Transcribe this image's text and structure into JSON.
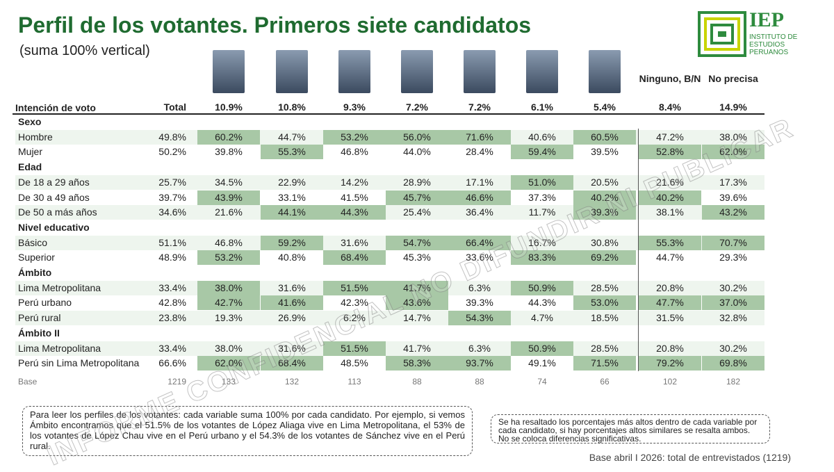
{
  "header": {
    "title": "Perfil de los votantes. Primeros siete candidatos",
    "subtitle": "(suma 100% vertical)",
    "logo": {
      "name": "IEP",
      "lines": [
        "INSTITUTO DE",
        "ESTUDIOS",
        "PERUANOS"
      ]
    }
  },
  "table": {
    "row_label": "Intención de voto",
    "total": "Total",
    "columns": [
      {
        "share": "10.9%"
      },
      {
        "share": "10.8%"
      },
      {
        "share": "9.3%"
      },
      {
        "share": "7.2%"
      },
      {
        "share": "7.2%"
      },
      {
        "share": "6.1%"
      },
      {
        "share": "5.4%"
      },
      {
        "name": "Ninguno, B/N",
        "share": "8.4%"
      },
      {
        "name": "No precisa",
        "share": "14.9%"
      }
    ],
    "sections": [
      {
        "title": "Sexo",
        "rows": [
          {
            "label": "Hombre",
            "total": "49.8%",
            "values": [
              "60.2%",
              "44.7%",
              "53.2%",
              "56.0%",
              "71.6%",
              "40.6%",
              "60.5%",
              "47.2%",
              "38.0%"
            ],
            "highlight": [
              true,
              false,
              true,
              true,
              true,
              false,
              true,
              false,
              false
            ]
          },
          {
            "label": "Mujer",
            "total": "50.2%",
            "values": [
              "39.8%",
              "55.3%",
              "46.8%",
              "44.0%",
              "28.4%",
              "59.4%",
              "39.5%",
              "52.8%",
              "62.0%"
            ],
            "highlight": [
              false,
              true,
              false,
              false,
              false,
              true,
              false,
              true,
              true
            ]
          }
        ]
      },
      {
        "title": "Edad",
        "rows": [
          {
            "label": "De 18 a 29 años",
            "total": "25.7%",
            "values": [
              "34.5%",
              "22.9%",
              "14.2%",
              "28.9%",
              "17.1%",
              "51.0%",
              "20.5%",
              "21.6%",
              "17.3%"
            ],
            "highlight": [
              false,
              false,
              false,
              false,
              false,
              true,
              false,
              false,
              false
            ]
          },
          {
            "label": "De 30 a 49 años",
            "total": "39.7%",
            "values": [
              "43.9%",
              "33.1%",
              "41.5%",
              "45.7%",
              "46.6%",
              "37.3%",
              "40.2%",
              "40.2%",
              "39.6%"
            ],
            "highlight": [
              true,
              false,
              false,
              true,
              true,
              false,
              true,
              true,
              false
            ]
          },
          {
            "label": "De 50 a más años",
            "total": "34.6%",
            "values": [
              "21.6%",
              "44.1%",
              "44.3%",
              "25.4%",
              "36.4%",
              "11.7%",
              "39.3%",
              "38.1%",
              "43.2%"
            ],
            "highlight": [
              false,
              true,
              true,
              false,
              false,
              false,
              true,
              false,
              true
            ]
          }
        ]
      },
      {
        "title": "Nivel educativo",
        "rows": [
          {
            "label": "Básico",
            "total": "51.1%",
            "values": [
              "46.8%",
              "59.2%",
              "31.6%",
              "54.7%",
              "66.4%",
              "16.7%",
              "30.8%",
              "55.3%",
              "70.7%"
            ],
            "highlight": [
              false,
              true,
              false,
              true,
              true,
              false,
              false,
              true,
              true
            ]
          },
          {
            "label": "Superior",
            "total": "48.9%",
            "values": [
              "53.2%",
              "40.8%",
              "68.4%",
              "45.3%",
              "33.6%",
              "83.3%",
              "69.2%",
              "44.7%",
              "29.3%"
            ],
            "highlight": [
              true,
              false,
              true,
              false,
              false,
              true,
              true,
              false,
              false
            ]
          }
        ]
      },
      {
        "title": "Ámbito",
        "rows": [
          {
            "label": "Lima Metropolitana",
            "total": "33.4%",
            "values": [
              "38.0%",
              "31.6%",
              "51.5%",
              "41.7%",
              "6.3%",
              "50.9%",
              "28.5%",
              "20.8%",
              "30.2%"
            ],
            "highlight": [
              true,
              false,
              true,
              true,
              false,
              true,
              false,
              false,
              false
            ]
          },
          {
            "label": "Perú urbano",
            "total": "42.8%",
            "values": [
              "42.7%",
              "41.6%",
              "42.3%",
              "43.6%",
              "39.3%",
              "44.3%",
              "53.0%",
              "47.7%",
              "37.0%"
            ],
            "highlight": [
              true,
              true,
              false,
              true,
              false,
              false,
              true,
              true,
              true
            ]
          },
          {
            "label": "Perú rural",
            "total": "23.8%",
            "values": [
              "19.3%",
              "26.9%",
              "6.2%",
              "14.7%",
              "54.3%",
              "4.7%",
              "18.5%",
              "31.5%",
              "32.8%"
            ],
            "highlight": [
              false,
              false,
              false,
              false,
              true,
              false,
              false,
              false,
              false
            ]
          }
        ]
      },
      {
        "title": "Ámbito II",
        "rows": [
          {
            "label": "Lima Metropolitana",
            "total": "33.4%",
            "values": [
              "38.0%",
              "31.6%",
              "51.5%",
              "41.7%",
              "6.3%",
              "50.9%",
              "28.5%",
              "20.8%",
              "30.2%"
            ],
            "highlight": [
              false,
              false,
              true,
              false,
              false,
              true,
              false,
              false,
              false
            ]
          },
          {
            "label": "Perú sin Lima Metropolitana",
            "total": "66.6%",
            "values": [
              "62.0%",
              "68.4%",
              "48.5%",
              "58.3%",
              "93.7%",
              "49.1%",
              "71.5%",
              "79.2%",
              "69.8%"
            ],
            "highlight": [
              true,
              true,
              false,
              true,
              true,
              false,
              true,
              true,
              true
            ]
          }
        ]
      }
    ],
    "base": {
      "label": "Base",
      "total": "1219",
      "values": [
        "133",
        "132",
        "113",
        "88",
        "88",
        "74",
        "66",
        "102",
        "182"
      ]
    }
  },
  "notes": {
    "left": "Para leer los perfiles de los votantes: cada variable suma 100% por cada candidato. Por ejemplo, si vemos Ámbito encontramos que el 51.5% de los votantes de López Aliaga vive en Lima Metropolitana, el 53% de los votantes de López Chau vive en el Perú urbano y el 54.3% de los votantes de Sánchez vive en el Perú rural.",
    "right": "Se ha resaltado los porcentajes más altos dentro de cada variable por cada candidato, si hay porcentajes altos similares se resalta ambos. No se coloca diferencias significativas.",
    "footer": "Base abril I 2026: total de entrevistados (1219)"
  },
  "watermark": "INFORME CONFIDENCIAL NO DIFUNDIR NI PUBLICAR"
}
